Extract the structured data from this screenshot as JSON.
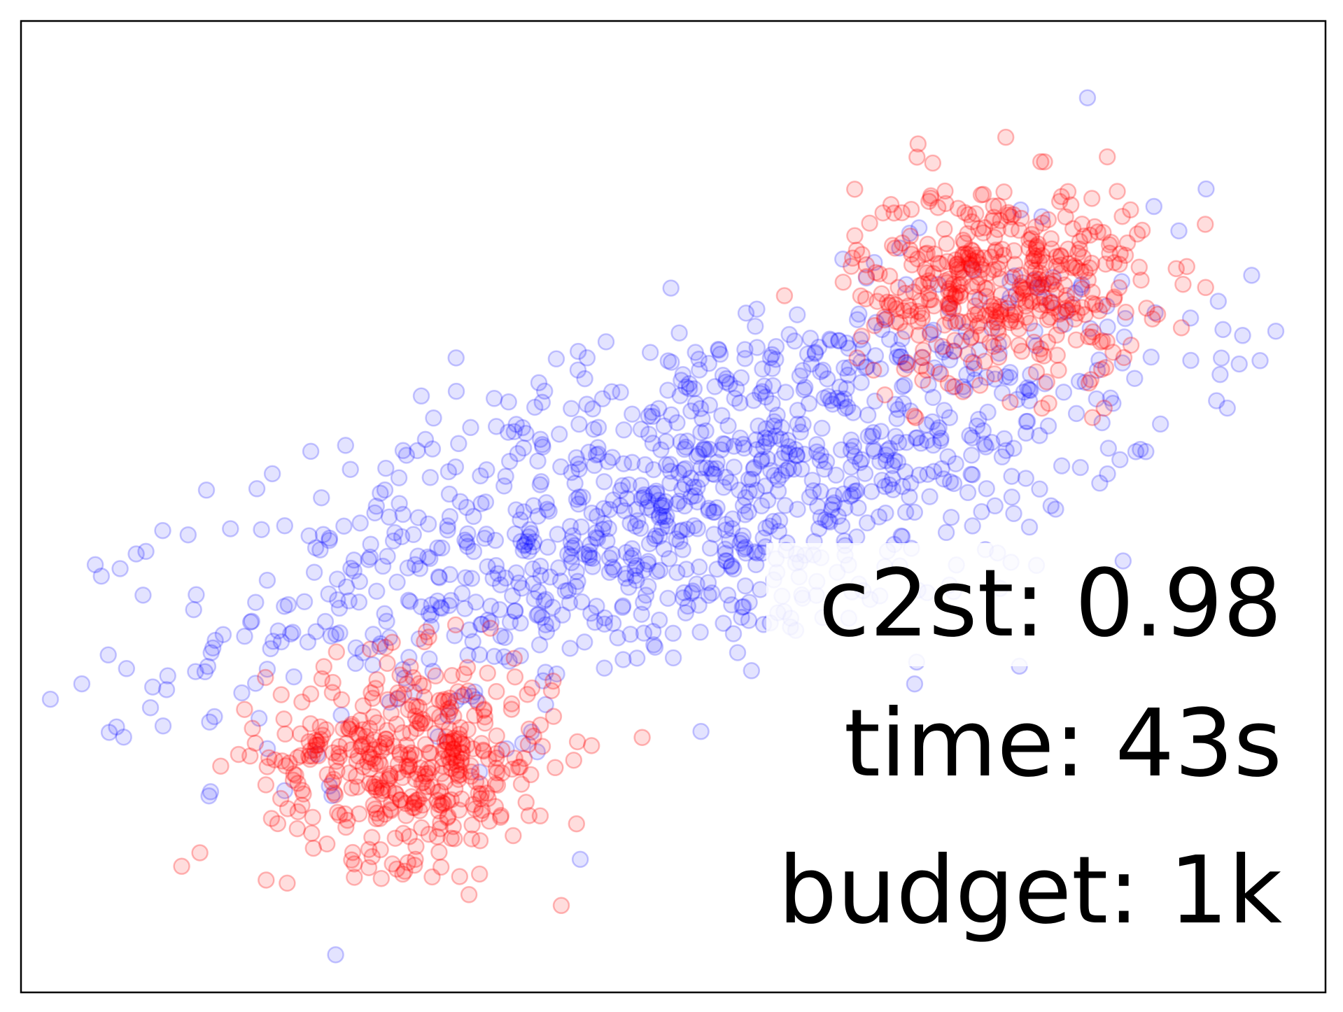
{
  "chart_data": {
    "type": "scatter",
    "title": "",
    "xlabel": "",
    "ylabel": "",
    "xlim": [
      -5,
      5
    ],
    "ylim": [
      -5,
      5
    ],
    "axes_ticks": false,
    "grid": false,
    "marker": "open-circle",
    "series": [
      {
        "color": "#0000ff",
        "opacity": 0.12,
        "distribution": "elongated band from lower-left to upper-right",
        "n_points": 1100,
        "mean": [
          0.2,
          0.1
        ],
        "std": [
          1.8,
          1.1
        ],
        "correlation": 0.6
      },
      {
        "color": "#ff0000",
        "opacity": 0.15,
        "distribution": "two tight clusters",
        "clusters": [
          {
            "center": [
              -2.0,
              -2.6
            ],
            "std": 0.55,
            "n_points": 420
          },
          {
            "center": [
              2.5,
              2.3
            ],
            "std": 0.55,
            "n_points": 420
          }
        ]
      }
    ],
    "annotations": [
      {
        "text": "c2st: 0.98",
        "bind": "stats.c2st"
      },
      {
        "text": "time: 43s",
        "bind": "stats.time"
      },
      {
        "text": "budget: 1k",
        "bind": "stats.budget"
      }
    ]
  },
  "stats": {
    "c2st": "c2st: 0.98",
    "time": "time: 43s",
    "budget": "budget: 1k"
  },
  "colors": {
    "frame": "#000000",
    "background": "#ffffff",
    "samples_a": "#0000ff",
    "samples_b": "#ff0000"
  }
}
